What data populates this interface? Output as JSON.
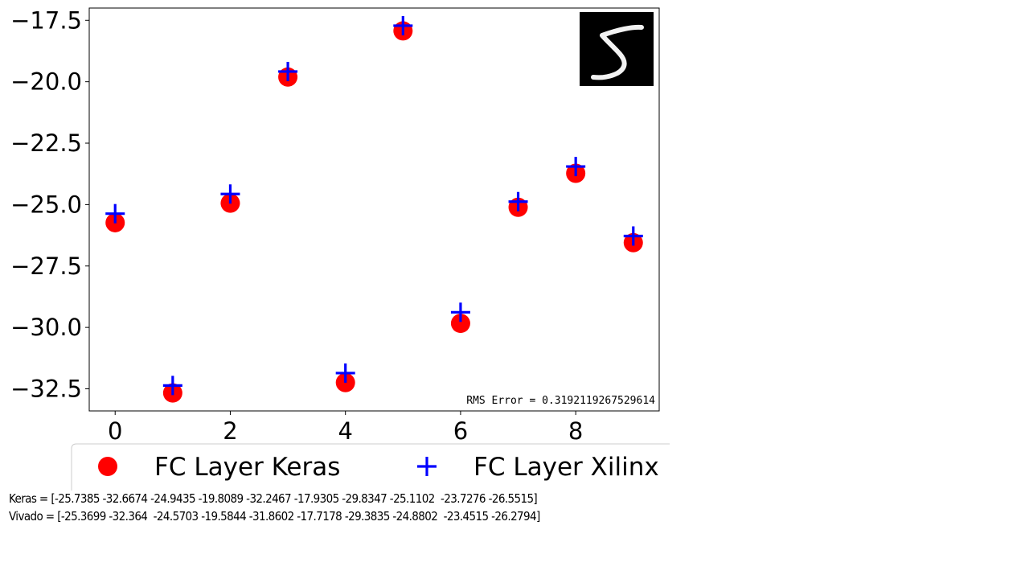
{
  "chart_data": {
    "type": "scatter",
    "x": [
      0,
      1,
      2,
      3,
      4,
      5,
      6,
      7,
      8,
      9
    ],
    "series": [
      {
        "name": "FC Layer Keras",
        "marker": "circle",
        "color": "#ff0000",
        "values": [
          -25.7385,
          -32.6674,
          -24.9435,
          -19.8089,
          -32.2467,
          -17.9305,
          -29.8347,
          -25.1102,
          -23.7276,
          -26.5515
        ]
      },
      {
        "name": "FC Layer Xilinx",
        "marker": "plus",
        "color": "#0000ff",
        "values": [
          -25.3699,
          -32.364,
          -24.5703,
          -19.5844,
          -31.8602,
          -17.7178,
          -29.3835,
          -24.8802,
          -23.4515,
          -26.2794
        ]
      }
    ],
    "xticks": [
      "0",
      "2",
      "4",
      "6",
      "8"
    ],
    "yticks": [
      "−17.5",
      "−20.0",
      "−22.5",
      "−25.0",
      "−27.5",
      "−30.0",
      "−32.5"
    ],
    "xlim": [
      -0.45,
      9.45
    ],
    "ylim": [
      -33.4,
      -17.0
    ],
    "grid": false,
    "legend_placement": "below",
    "annotation": "RMS Error = 0.3192119267529614",
    "inset_image": "handwritten-digit-5"
  },
  "readouts": {
    "keras_line": "Keras = [-25.7385 -32.6674 -24.9435 -19.8089 -32.2467 -17.9305 -29.8347 -25.1102  -23.7276 -26.5515]",
    "vivado_line": "Vivado = [-25.3699 -32.364  -24.5703 -19.5844 -31.8602 -17.7178 -29.3835 -24.8802  -23.4515 -26.2794]"
  }
}
